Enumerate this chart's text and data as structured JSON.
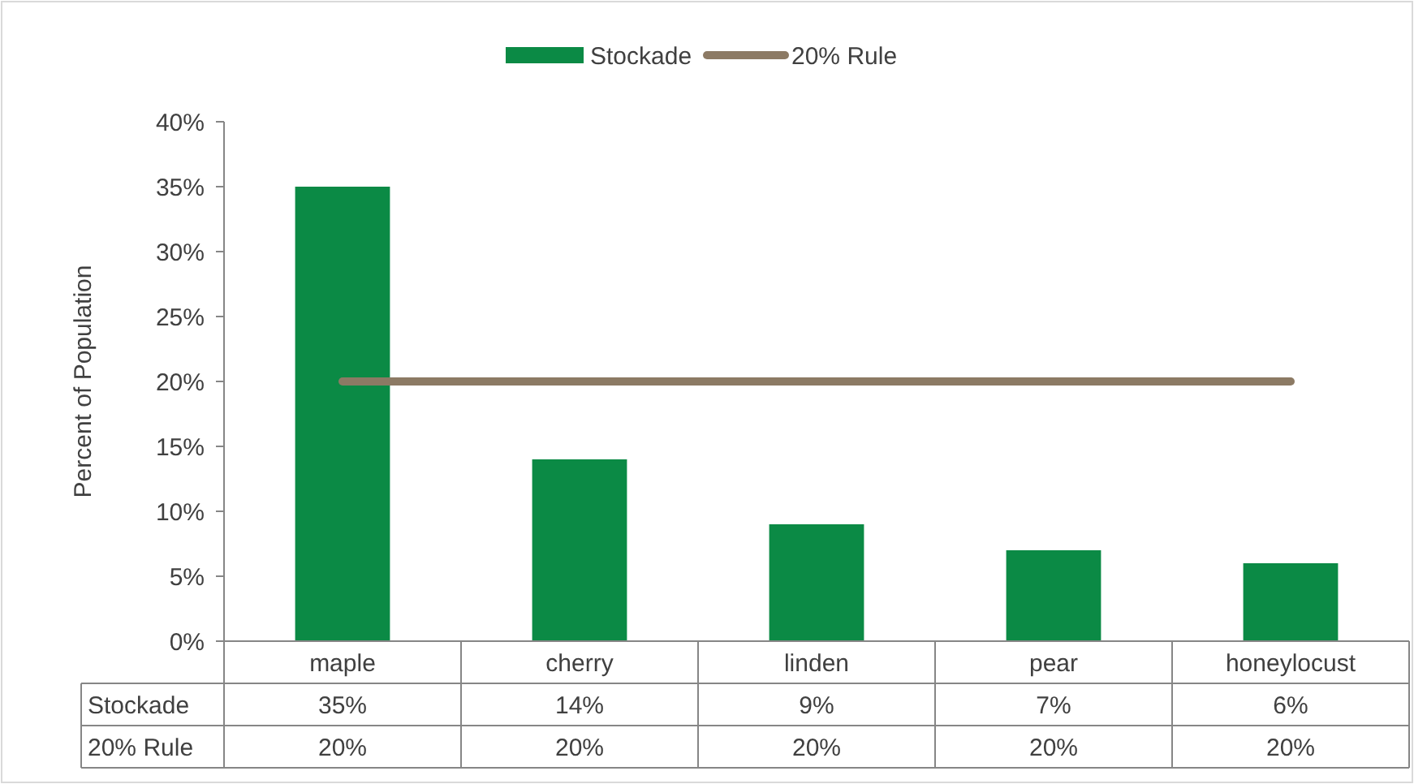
{
  "chart_data": {
    "type": "bar",
    "ylabel": "Percent of Population",
    "categories": [
      "maple",
      "cherry",
      "linden",
      "pear",
      "honeylocust"
    ],
    "series": [
      {
        "name": "Stockade",
        "color": "#0b8a45",
        "values": [
          35,
          14,
          9,
          7,
          6
        ],
        "value_labels": [
          "35%",
          "14%",
          "9%",
          "7%",
          "6%"
        ]
      },
      {
        "name": "20% Rule",
        "type": "line",
        "color": "#8c7a64",
        "values": [
          20,
          20,
          20,
          20,
          20
        ],
        "value_labels": [
          "20%",
          "20%",
          "20%",
          "20%",
          "20%"
        ]
      }
    ],
    "ylim": [
      0,
      40
    ],
    "yticks": [
      {
        "value": 0,
        "label": "0%"
      },
      {
        "value": 5,
        "label": "5%"
      },
      {
        "value": 10,
        "label": "10%"
      },
      {
        "value": 15,
        "label": "15%"
      },
      {
        "value": 20,
        "label": "20%"
      },
      {
        "value": 25,
        "label": "25%"
      },
      {
        "value": 30,
        "label": "30%"
      },
      {
        "value": 35,
        "label": "35%"
      },
      {
        "value": 40,
        "label": "40%"
      }
    ],
    "legend": "top"
  }
}
